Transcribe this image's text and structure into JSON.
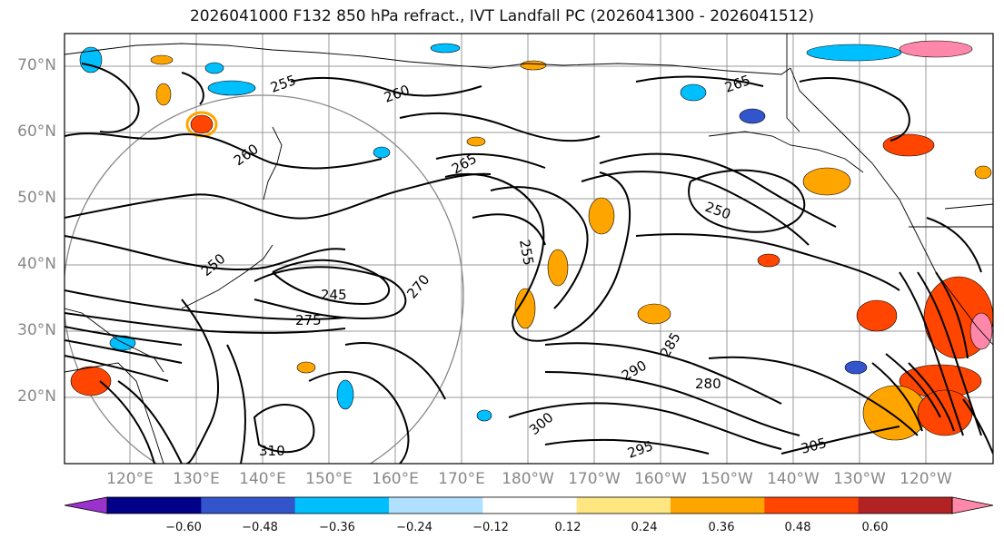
{
  "title": "2026041000 F132 850 hPa refract., IVT Landfall PC (2026041300 - 2026041512)",
  "latitude_labels": [
    "70°N",
    "60°N",
    "50°N",
    "40°N",
    "30°N",
    "20°N"
  ],
  "longitude_labels": [
    "120°E",
    "130°E",
    "140°E",
    "150°E",
    "160°E",
    "170°E",
    "180°W",
    "170°W",
    "160°W",
    "150°W",
    "140°W",
    "130°W",
    "120°W"
  ],
  "colorbar": {
    "ticks": [
      "−0.60",
      "−0.48",
      "−0.36",
      "−0.24",
      "−0.12",
      "0.12",
      "0.24",
      "0.36",
      "0.48",
      "0.60"
    ],
    "colors": [
      "#9933cc",
      "#000088",
      "#3355cc",
      "#00bfff",
      "#b0e0ff",
      "#ffffff",
      "#ffe680",
      "#ffa500",
      "#ff4500",
      "#b22222",
      "#ff88aa"
    ]
  },
  "contour_labels": [
    "255",
    "260",
    "265",
    "250",
    "245",
    "270",
    "275",
    "280",
    "285",
    "290",
    "295",
    "300",
    "305",
    "310",
    "260",
    "265",
    "250",
    "255"
  ],
  "colors": {
    "land_outline": "#000000",
    "grid": "#999999",
    "circle": "#777777"
  }
}
